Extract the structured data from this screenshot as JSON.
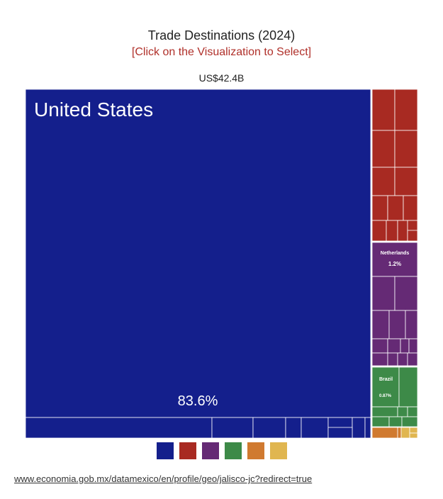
{
  "header": {
    "title": "Trade Destinations (2024)",
    "subtitle": "[Click on the Visualization to Select]",
    "total": "US$42.4B"
  },
  "source_link": "www.economia.gob.mx/datamexico/en/profile/geo/jalisco-jc?redirect=true",
  "colors": {
    "north_america": "#141f8c",
    "europe": "#a82a22",
    "asia": "#652a75",
    "south_america": "#3d8a48",
    "africa": "#d07a30",
    "oceania": "#e0b650"
  },
  "legend": [
    {
      "key": "north_america",
      "color": "#141f8c"
    },
    {
      "key": "europe",
      "color": "#a82a22"
    },
    {
      "key": "asia",
      "color": "#652a75"
    },
    {
      "key": "south_america",
      "color": "#3d8a48"
    },
    {
      "key": "africa",
      "color": "#d07a30"
    },
    {
      "key": "oceania",
      "color": "#e0b650"
    }
  ],
  "chart_data": {
    "type": "treemap",
    "total_label": "US$42.4B",
    "labeled_items": [
      {
        "name": "United States",
        "share_label": "83.6%",
        "share": 83.6,
        "group": "north_america"
      },
      {
        "name": "Netherlands",
        "share_label": "1.2%",
        "share": 1.2,
        "group": "asia"
      },
      {
        "name": "Brazil",
        "share_label": "0.87%",
        "share": 0.87,
        "group": "south_america"
      }
    ]
  }
}
